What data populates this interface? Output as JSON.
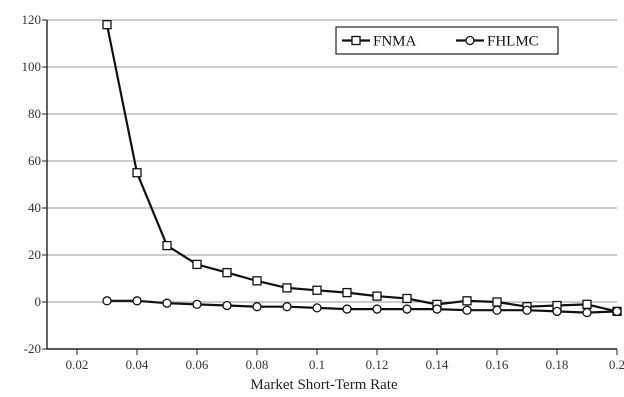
{
  "chart_data": {
    "type": "line",
    "title": "",
    "xlabel": "Market Short-Term Rate",
    "ylabel": "",
    "xlim": [
      0.01,
      0.2
    ],
    "ylim": [
      -20,
      120
    ],
    "x_ticks": [
      0.02,
      0.04,
      0.06,
      0.08,
      0.1,
      0.12,
      0.14,
      0.16,
      0.18,
      0.2
    ],
    "x_tick_labels": [
      "0.02",
      "0.04",
      "0.06",
      "0.08",
      "0.1",
      "0.12",
      "0.14",
      "0.16",
      "0.18",
      "0.2"
    ],
    "y_ticks": [
      -20,
      0,
      20,
      40,
      60,
      80,
      100,
      120
    ],
    "y_tick_labels": [
      "-20",
      "0",
      "20",
      "40",
      "60",
      "80",
      "100",
      "120"
    ],
    "grid": true,
    "legend_position": "top-right",
    "x": [
      0.03,
      0.04,
      0.05,
      0.06,
      0.07,
      0.08,
      0.09,
      0.1,
      0.11,
      0.12,
      0.13,
      0.14,
      0.15,
      0.16,
      0.17,
      0.18,
      0.19,
      0.2
    ],
    "series": [
      {
        "name": "FNMA",
        "marker": "square",
        "values": [
          118,
          55,
          24,
          16,
          12.5,
          9,
          6,
          5,
          4,
          2.5,
          1.5,
          -1,
          0.5,
          0,
          -2,
          -1.5,
          -1,
          -4
        ]
      },
      {
        "name": "FHLMC",
        "marker": "circle",
        "values": [
          0.5,
          0.5,
          -0.5,
          -1,
          -1.5,
          -2,
          -2,
          -2.5,
          -3,
          -3,
          -3,
          -3,
          -3.5,
          -3.5,
          -3.5,
          -4,
          -4.5,
          -4
        ]
      }
    ]
  }
}
